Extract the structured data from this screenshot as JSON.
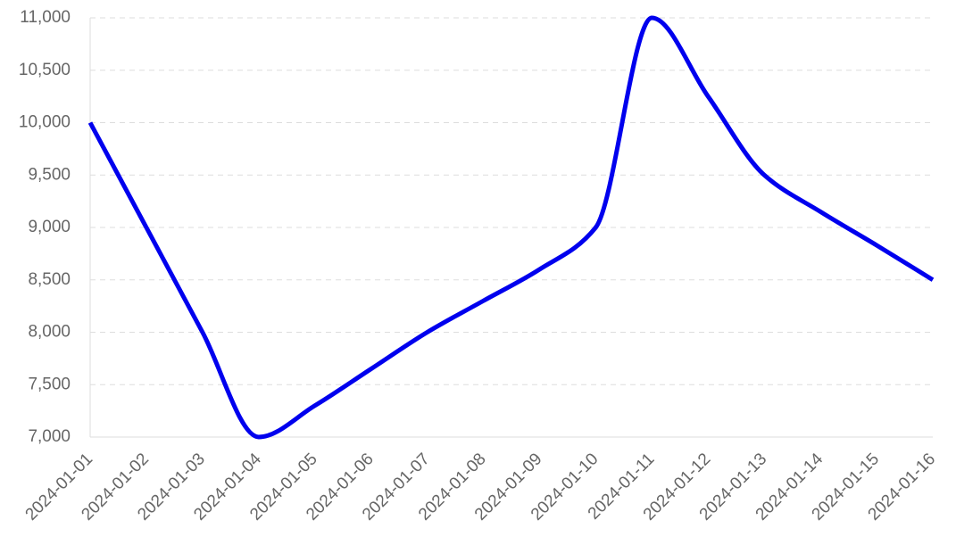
{
  "chart_data": {
    "type": "line",
    "x": [
      "2024-01-01",
      "2024-01-02",
      "2024-01-03",
      "2024-01-04",
      "2024-01-05",
      "2024-01-06",
      "2024-01-07",
      "2024-01-08",
      "2024-01-09",
      "2024-01-10",
      "2024-01-11",
      "2024-01-12",
      "2024-01-13",
      "2024-01-14",
      "2024-01-15",
      "2024-01-16"
    ],
    "values": [
      10000,
      9000,
      8000,
      7000,
      7300,
      7650,
      8000,
      8300,
      8600,
      9000,
      11000,
      10250,
      9500,
      9150,
      8830,
      8500
    ],
    "color": "#0000ee",
    "ylim": [
      7000,
      11000
    ],
    "yticks": [
      {
        "value": 7000,
        "label": "7,000"
      },
      {
        "value": 7500,
        "label": "7,500"
      },
      {
        "value": 8000,
        "label": "8,000"
      },
      {
        "value": 8500,
        "label": "8,500"
      },
      {
        "value": 9000,
        "label": "9,000"
      },
      {
        "value": 9500,
        "label": "9,500"
      },
      {
        "value": 10000,
        "label": "10,000"
      },
      {
        "value": 10500,
        "label": "10,500"
      },
      {
        "value": 11000,
        "label": "11,000"
      }
    ],
    "grid": true
  }
}
